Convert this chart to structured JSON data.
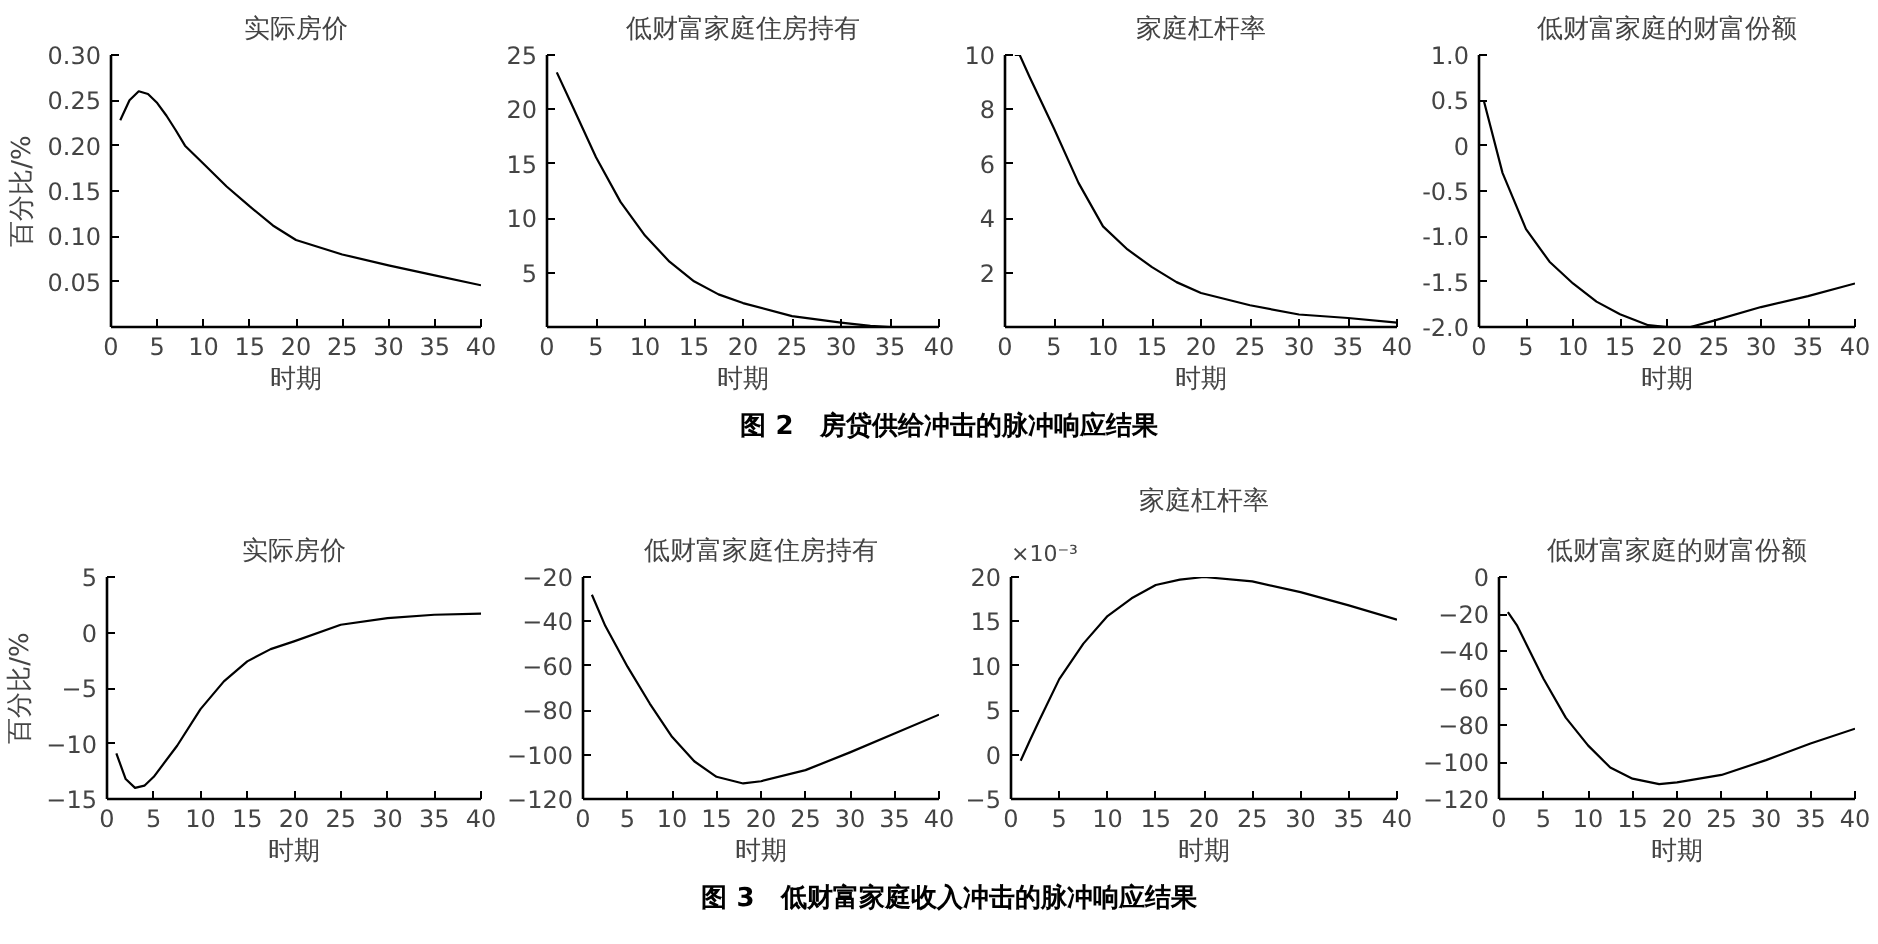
{
  "chart_data": [
    {
      "type": "line",
      "title": "实际房价",
      "xlabel": "时期",
      "ylabel": "百分比/%",
      "annotations": [
        "图 2　房贷供给冲击的脉冲响应结果"
      ],
      "x": [
        1,
        2,
        3,
        4,
        5,
        6,
        7,
        8,
        10,
        12.5,
        15,
        17.5,
        20,
        25,
        30,
        35,
        40
      ],
      "values": [
        0.228,
        0.25,
        0.26,
        0.257,
        0.247,
        0.233,
        0.217,
        0.2,
        0.18,
        0.155,
        0.133,
        0.112,
        0.096,
        0.08,
        0.068,
        0.057,
        0.046
      ],
      "color": "#000000",
      "xlim": [
        0,
        40
      ],
      "ylim": [
        0,
        0.3
      ],
      "xticks": [
        0,
        5,
        10,
        15,
        20,
        25,
        30,
        35,
        40
      ],
      "yticks": [
        {
          "value": 0.05,
          "label": "0.05"
        },
        {
          "value": 0.1,
          "label": "0.10"
        },
        {
          "value": 0.15,
          "label": "0.15"
        },
        {
          "value": 0.2,
          "label": "0.20"
        },
        {
          "value": 0.25,
          "label": "0.25"
        },
        {
          "value": 0.3,
          "label": "0.30"
        }
      ],
      "grid": false
    },
    {
      "type": "line",
      "title": "低财富家庭住房持有",
      "xlabel": "时期",
      "x": [
        1,
        2.5,
        5,
        7.5,
        10,
        12.5,
        15,
        17.5,
        20,
        25,
        30,
        33,
        35,
        40
      ],
      "values": [
        23.4,
        20.5,
        15.6,
        11.5,
        8.4,
        6,
        4.2,
        3,
        2.2,
        1,
        0.4,
        0.1,
        0,
        0
      ],
      "color": "#000000",
      "xlim": [
        0,
        40
      ],
      "ylim": [
        0,
        25
      ],
      "xticks": [
        0,
        5,
        10,
        15,
        20,
        25,
        30,
        35,
        40
      ],
      "yticks": [
        5,
        10,
        15,
        20,
        25
      ],
      "grid": false
    },
    {
      "type": "line",
      "title": "家庭杠杆率",
      "xlabel": "时期",
      "x": [
        1,
        1.5,
        2.5,
        5,
        7.5,
        10,
        12.5,
        15,
        17.5,
        20,
        25,
        30,
        35,
        40
      ],
      "values": [
        10,
        10,
        9.2,
        7.3,
        5.3,
        3.7,
        2.85,
        2.2,
        1.65,
        1.25,
        0.8,
        0.46,
        0.33,
        0.16
      ],
      "color": "#000000",
      "xlim": [
        0,
        40
      ],
      "ylim": [
        0,
        10
      ],
      "xticks": [
        0,
        5,
        10,
        15,
        20,
        25,
        30,
        35,
        40
      ],
      "yticks": [
        2,
        4,
        6,
        8,
        10
      ],
      "grid": false
    },
    {
      "type": "line",
      "title": "低财富家庭的财富份额",
      "xlabel": "时期",
      "x": [
        0.5,
        2.5,
        5,
        7.5,
        10,
        12.5,
        15,
        18,
        20,
        22.5,
        25,
        30,
        35,
        40
      ],
      "values": [
        0.5,
        -0.3,
        -0.92,
        -1.28,
        -1.52,
        -1.72,
        -1.86,
        -1.98,
        -2.0,
        -2.0,
        -1.93,
        -1.78,
        -1.66,
        -1.52
      ],
      "color": "#000000",
      "xlim": [
        0,
        40
      ],
      "ylim": [
        -2,
        1
      ],
      "xticks": [
        0,
        5,
        10,
        15,
        20,
        25,
        30,
        35,
        40
      ],
      "yticks": [
        {
          "value": -2,
          "label": "-2.0"
        },
        {
          "value": -1.5,
          "label": "-1.5"
        },
        {
          "value": -1,
          "label": "-1.0"
        },
        {
          "value": -0.5,
          "label": "-0.5"
        },
        0,
        {
          "value": 0.5,
          "label": "0.5"
        },
        {
          "value": 1,
          "label": "1.0"
        }
      ],
      "grid": false
    },
    {
      "type": "line",
      "title": "实际房价",
      "xlabel": "时期",
      "ylabel": "百分比/%",
      "annotations": [
        "图 3　低财富家庭收入冲击的脉冲响应结果"
      ],
      "x": [
        1,
        2,
        3,
        4,
        5,
        7.5,
        10,
        12.5,
        15,
        17.5,
        20,
        25,
        30,
        35,
        40
      ],
      "values": [
        -10.9,
        -13.2,
        -14.0,
        -13.8,
        -13.0,
        -10.2,
        -6.9,
        -4.4,
        -2.6,
        -1.5,
        -0.8,
        0.7,
        1.3,
        1.6,
        1.7
      ],
      "color": "#000000",
      "xlim": [
        0,
        40
      ],
      "ylim": [
        -15,
        5
      ],
      "xticks": [
        0,
        5,
        10,
        15,
        20,
        25,
        30,
        35,
        40
      ],
      "yticks": [
        -15,
        -10,
        -5,
        0,
        5
      ],
      "grid": false
    },
    {
      "type": "line",
      "title": "低财富家庭住房持有",
      "xlabel": "时期",
      "x": [
        1,
        2.5,
        5,
        7.5,
        10,
        12.5,
        15,
        18,
        20,
        25,
        30,
        35,
        40
      ],
      "values": [
        -28,
        -42,
        -60.4,
        -77,
        -92,
        -103,
        -110,
        -113,
        -112,
        -107,
        -99,
        -90.5,
        -82
      ],
      "color": "#000000",
      "xlim": [
        0,
        40
      ],
      "ylim": [
        -120,
        -20
      ],
      "xticks": [
        0,
        5,
        10,
        15,
        20,
        25,
        30,
        35,
        40
      ],
      "yticks": [
        -120,
        -100,
        -80,
        -60,
        -40,
        -20
      ],
      "grid": false
    },
    {
      "type": "line",
      "title": "家庭杠杆率",
      "xlabel": "时期",
      "annotations": [
        "×10⁻³"
      ],
      "x": [
        1,
        2,
        3,
        5,
        7.5,
        10,
        12.5,
        15,
        17.5,
        20,
        25,
        30,
        35,
        40
      ],
      "values": [
        -0.7,
        1.7,
        4.0,
        8.5,
        12.5,
        15.6,
        17.6,
        19.1,
        19.7,
        20,
        19.5,
        18.3,
        16.8,
        15.2
      ],
      "color": "#000000",
      "xlim": [
        0,
        40
      ],
      "ylim": [
        -5,
        20
      ],
      "xticks": [
        0,
        5,
        10,
        15,
        20,
        25,
        30,
        35,
        40
      ],
      "yticks": [
        -5,
        0,
        5,
        10,
        15,
        20
      ],
      "grid": false
    },
    {
      "type": "line",
      "title": "低财富家庭的财富份额",
      "xlabel": "时期",
      "x": [
        1,
        2,
        5,
        7.5,
        10,
        12.5,
        15,
        18,
        20,
        25,
        30,
        35,
        40
      ],
      "values": [
        -19,
        -26,
        -55,
        -76,
        -91,
        -103,
        -109,
        -112,
        -111,
        -107,
        -99,
        -90,
        -82
      ],
      "color": "#000000",
      "xlim": [
        0,
        40
      ],
      "ylim": [
        -120,
        0
      ],
      "xticks": [
        0,
        5,
        10,
        15,
        20,
        25,
        30,
        35,
        40
      ],
      "yticks": [
        -120,
        -100,
        -80,
        -60,
        -40,
        -20,
        0
      ],
      "grid": false
    }
  ]
}
